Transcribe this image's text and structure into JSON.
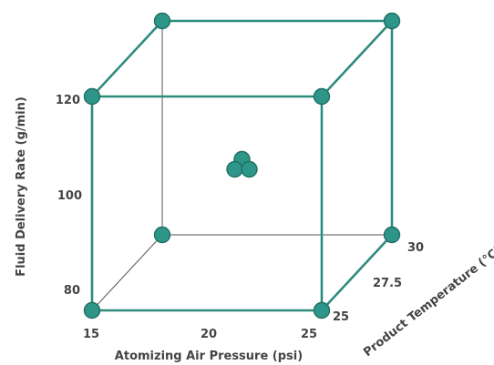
{
  "chart_data": {
    "type": "scatter",
    "x_axis": {
      "title": "Atomizing Air Pressure (psi)",
      "ticks": [
        "15",
        "20",
        "25"
      ],
      "range": [
        15,
        25
      ]
    },
    "y_axis": {
      "title": "Fluid Delivery Rate (g/min)",
      "ticks": [
        "80",
        "100",
        "120"
      ],
      "range": [
        80,
        120
      ]
    },
    "z_axis": {
      "title": "Product Temperature (°C)",
      "ticks": [
        "25",
        "27.5",
        "30"
      ],
      "range": [
        25,
        30
      ]
    },
    "corner_points": [
      {
        "x": 15,
        "y": 80,
        "z": 25
      },
      {
        "x": 25,
        "y": 80,
        "z": 25
      },
      {
        "x": 15,
        "y": 120,
        "z": 25
      },
      {
        "x": 25,
        "y": 120,
        "z": 25
      },
      {
        "x": 15,
        "y": 80,
        "z": 30
      },
      {
        "x": 25,
        "y": 80,
        "z": 30
      },
      {
        "x": 15,
        "y": 120,
        "z": 30
      },
      {
        "x": 25,
        "y": 120,
        "z": 30
      }
    ],
    "center_points": [
      {
        "x": 20,
        "y": 100,
        "z": 27.5
      },
      {
        "x": 20,
        "y": 100,
        "z": 27.5
      },
      {
        "x": 20,
        "y": 100,
        "z": 27.5
      }
    ],
    "colors": {
      "edge": "#2e8b7f",
      "point_fill": "#2e9688",
      "point_stroke": "#1f6f65",
      "hidden_edge": "#555555"
    }
  }
}
